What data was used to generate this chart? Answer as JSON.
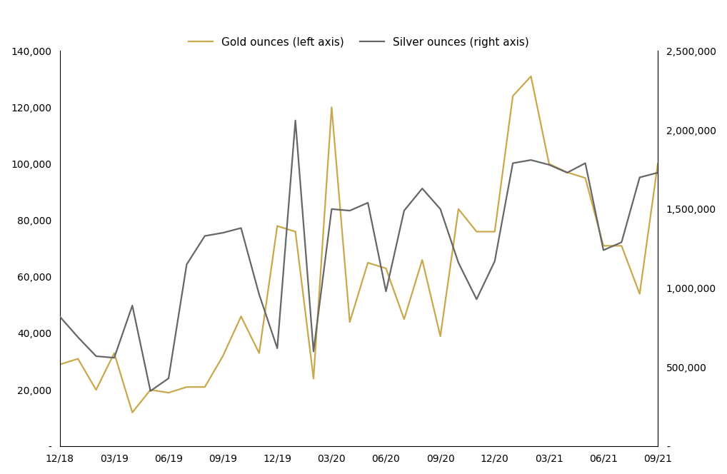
{
  "gold_values": [
    29000,
    31000,
    20000,
    33000,
    12000,
    20000,
    19000,
    21000,
    21000,
    32000,
    46000,
    33000,
    78000,
    76000,
    24000,
    120000,
    44000,
    65000,
    63000,
    45000,
    66000,
    39000,
    84000,
    76000,
    76000,
    124000,
    131000,
    100000,
    97000,
    95000,
    71000,
    71000,
    54000,
    100000
  ],
  "silver_values": [
    820000,
    690000,
    570000,
    560000,
    890000,
    350000,
    430000,
    1150000,
    1330000,
    1350000,
    1380000,
    960000,
    620000,
    2060000,
    600000,
    1500000,
    1490000,
    1540000,
    980000,
    1490000,
    1630000,
    1500000,
    1160000,
    930000,
    1170000,
    1790000,
    1810000,
    1780000,
    1730000,
    1790000,
    1240000,
    1290000,
    1700000,
    1730000
  ],
  "gold_color": "#C9A84C",
  "silver_color": "#666666",
  "gold_label": "Gold ounces (left axis)",
  "silver_label": "Silver ounces (right axis)",
  "left_ylim": [
    0,
    140000
  ],
  "right_ylim": [
    0,
    2500000
  ],
  "left_yticks": [
    0,
    20000,
    40000,
    60000,
    80000,
    100000,
    120000,
    140000
  ],
  "right_yticks": [
    0,
    500000,
    1000000,
    1500000,
    2000000,
    2500000
  ],
  "tick_positions": [
    0,
    3,
    6,
    9,
    12,
    15,
    18,
    21,
    24,
    27,
    30,
    33
  ],
  "tick_labels": [
    "12/18",
    "03/19",
    "06/19",
    "09/19",
    "12/19",
    "03/20",
    "06/20",
    "09/20",
    "12/20",
    "03/21",
    "06/21",
    "09/21"
  ],
  "background_color": "#ffffff",
  "line_width": 1.6
}
